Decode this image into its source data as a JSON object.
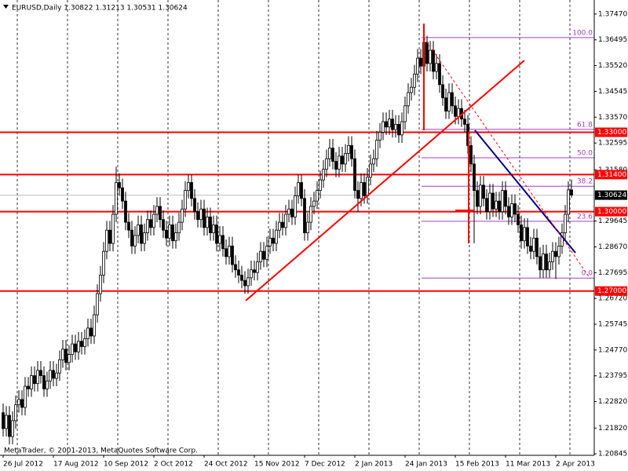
{
  "chart_data": {
    "type": "candlestick",
    "title": "EURUSD,Daily  1.30822 1.31213 1.30531 1.30624",
    "footer": "MetaTrader, © 2001-2013, MetaQuotes Software Corp.",
    "categories": [
      "26 Jul 2012",
      null,
      null,
      null,
      null,
      null,
      null,
      null,
      null,
      null,
      null,
      null,
      null,
      null,
      null,
      null,
      "17 Aug 2012",
      null,
      null,
      null,
      null,
      null,
      null,
      null,
      null,
      null,
      null,
      null,
      null,
      null,
      null,
      null,
      "10 Sep 2012",
      null,
      null,
      null,
      null,
      null,
      null,
      null,
      null,
      null,
      null,
      null,
      null,
      null,
      null,
      null,
      "2 Oct 2012",
      null,
      null,
      null,
      null,
      null,
      null,
      null,
      null,
      null,
      null,
      null,
      null,
      null,
      null,
      null,
      "24 Oct 2012",
      null,
      null,
      null,
      null,
      null,
      null,
      null,
      null,
      null,
      null,
      null,
      null,
      null,
      null,
      null,
      "15 Nov 2012",
      null,
      null,
      null,
      null,
      null,
      null,
      null,
      null,
      null,
      null,
      null,
      null,
      null,
      null,
      null,
      "7 Dec 2012",
      null,
      null,
      null,
      null,
      null,
      null,
      null,
      null,
      null,
      null,
      null,
      null,
      null,
      null,
      null,
      "2 Jan 2013",
      null,
      null,
      null,
      null,
      null,
      null,
      null,
      null,
      null,
      null,
      null,
      null,
      null,
      null,
      null,
      "24 Jan 2013",
      null,
      null,
      null,
      null,
      null,
      null,
      null,
      null,
      null,
      null,
      null,
      null,
      null,
      null,
      null,
      "15 Feb 2013",
      null,
      null,
      null,
      null,
      null,
      null,
      null,
      null,
      null,
      null,
      null,
      null,
      null,
      null,
      null,
      "11 Mar 2013",
      null,
      null,
      null,
      null,
      null,
      null,
      null,
      null,
      null,
      null,
      null,
      null,
      null,
      null,
      null,
      "2 Apr 2013",
      null,
      null,
      null,
      null,
      null
    ],
    "open": [
      1.224,
      1.218,
      1.223,
      1.215,
      1.221,
      1.227,
      1.229,
      1.226,
      1.234,
      1.233,
      1.238,
      1.235,
      1.24,
      1.238,
      1.233,
      1.236,
      1.24,
      1.237,
      1.239,
      1.244,
      1.248,
      1.243,
      1.246,
      1.25,
      1.247,
      1.251,
      1.249,
      1.252,
      1.256,
      1.253,
      1.261,
      1.269,
      1.276,
      1.285,
      1.293,
      1.288,
      1.299,
      1.311,
      1.309,
      1.304,
      1.296,
      1.293,
      1.287,
      1.291,
      1.295,
      1.288,
      1.292,
      1.297,
      1.294,
      1.299,
      1.302,
      1.297,
      1.293,
      1.29,
      1.295,
      1.289,
      1.292,
      1.296,
      1.301,
      1.308,
      1.311,
      1.305,
      1.3,
      1.297,
      1.301,
      1.294,
      1.298,
      1.292,
      1.295,
      1.288,
      1.291,
      1.286,
      1.283,
      1.287,
      1.28,
      1.278,
      1.276,
      1.274,
      1.272,
      1.275,
      1.278,
      1.277,
      1.281,
      1.285,
      1.282,
      1.287,
      1.29,
      1.288,
      1.293,
      1.296,
      1.294,
      1.299,
      1.301,
      1.298,
      1.306,
      1.311,
      1.305,
      1.292,
      1.296,
      1.302,
      1.304,
      1.308,
      1.312,
      1.316,
      1.32,
      1.324,
      1.319,
      1.316,
      1.321,
      1.318,
      1.322,
      1.325,
      1.32,
      1.308,
      1.305,
      1.311,
      1.306,
      1.313,
      1.318,
      1.32,
      1.327,
      1.33,
      1.334,
      1.332,
      1.335,
      1.331,
      1.333,
      1.329,
      1.334,
      1.34,
      1.345,
      1.347,
      1.352,
      1.358,
      1.355,
      1.364,
      1.356,
      1.361,
      1.353,
      1.356,
      1.348,
      1.343,
      1.338,
      1.345,
      1.34,
      1.336,
      1.339,
      1.335,
      1.333,
      1.325,
      1.318,
      1.308,
      1.302,
      1.31,
      1.305,
      1.3,
      1.307,
      1.301,
      1.304,
      1.3,
      1.308,
      1.302,
      1.298,
      1.303,
      1.299,
      1.295,
      1.289,
      1.294,
      1.287,
      1.285,
      1.29,
      1.283,
      1.278,
      1.284,
      1.278,
      1.281,
      1.285,
      1.283,
      1.287,
      1.292,
      1.299,
      1.30822
    ],
    "high": [
      1.2275,
      1.2265,
      1.2265,
      1.2245,
      1.2305,
      1.2325,
      1.2325,
      1.2375,
      1.2375,
      1.2415,
      1.2415,
      1.2435,
      1.2435,
      1.2415,
      1.2395,
      1.2435,
      1.2435,
      1.2425,
      1.2475,
      1.2515,
      1.2515,
      1.2495,
      1.2535,
      1.2535,
      1.2545,
      1.2545,
      1.2555,
      1.2595,
      1.2595,
      1.2645,
      1.2725,
      1.2795,
      1.2885,
      1.2965,
      1.2965,
      1.3025,
      1.317,
      1.3145,
      1.3125,
      1.3075,
      1.2995,
      1.2965,
      1.2945,
      1.2985,
      1.2985,
      1.2955,
      1.3005,
      1.3005,
      1.3025,
      1.3055,
      1.3055,
      1.3005,
      1.2965,
      1.2985,
      1.2985,
      1.2955,
      1.2995,
      1.3045,
      1.3115,
      1.314,
      1.314,
      1.3085,
      1.3035,
      1.3045,
      1.3045,
      1.3015,
      1.3015,
      1.2985,
      1.2985,
      1.2945,
      1.2945,
      1.2895,
      1.2905,
      1.2905,
      1.2835,
      1.2815,
      1.2795,
      1.2775,
      1.2785,
      1.2815,
      1.2815,
      1.2845,
      1.2885,
      1.2885,
      1.2905,
      1.2935,
      1.2935,
      1.2965,
      1.2995,
      1.2995,
      1.3025,
      1.3045,
      1.3045,
      1.3095,
      1.314,
      1.314,
      1.3085,
      1.2995,
      1.3055,
      1.3075,
      1.3115,
      1.3155,
      1.3195,
      1.3235,
      1.3275,
      1.3275,
      1.3225,
      1.3245,
      1.3245,
      1.3255,
      1.3285,
      1.3285,
      1.3235,
      1.3115,
      1.3145,
      1.3145,
      1.3165,
      1.3215,
      1.3235,
      1.3305,
      1.3335,
      1.3375,
      1.3375,
      1.3385,
      1.3385,
      1.3365,
      1.3365,
      1.3375,
      1.3435,
      1.3485,
      1.3505,
      1.3555,
      1.3615,
      1.3615,
      1.3665,
      1.3665,
      1.3645,
      1.3645,
      1.3595,
      1.3595,
      1.3515,
      1.3465,
      1.3485,
      1.3485,
      1.3435,
      1.3425,
      1.3425,
      1.3385,
      1.3365,
      1.3285,
      1.3215,
      1.3115,
      1.3135,
      1.3135,
      1.3085,
      1.3105,
      1.3105,
      1.3075,
      1.3075,
      1.3115,
      1.3115,
      1.3055,
      1.3065,
      1.3065,
      1.3025,
      1.2985,
      1.2975,
      1.2975,
      1.2905,
      1.2935,
      1.2935,
      1.2865,
      1.2875,
      1.2875,
      1.2845,
      1.2885,
      1.2885,
      1.2905,
      1.2955,
      1.3025,
      1.3115,
      1.31213
    ],
    "low": [
      1.215,
      1.215,
      1.212,
      1.212,
      1.218,
      1.224,
      1.223,
      1.223,
      1.23,
      1.23,
      1.232,
      1.232,
      1.235,
      1.23,
      1.23,
      1.233,
      1.234,
      1.234,
      1.236,
      1.241,
      1.24,
      1.24,
      1.243,
      1.244,
      1.244,
      1.246,
      1.246,
      1.249,
      1.25,
      1.25,
      1.258,
      1.266,
      1.273,
      1.282,
      1.285,
      1.285,
      1.296,
      1.306,
      1.301,
      1.293,
      1.29,
      1.284,
      1.284,
      1.288,
      1.285,
      1.285,
      1.289,
      1.291,
      1.291,
      1.296,
      1.294,
      1.29,
      1.287,
      1.287,
      1.286,
      1.286,
      1.289,
      1.293,
      1.298,
      1.305,
      1.302,
      1.297,
      1.294,
      1.294,
      1.291,
      1.291,
      1.289,
      1.289,
      1.285,
      1.285,
      1.283,
      1.28,
      1.28,
      1.277,
      1.275,
      1.273,
      1.271,
      1.269,
      1.269,
      1.272,
      1.274,
      1.274,
      1.278,
      1.279,
      1.279,
      1.284,
      1.285,
      1.285,
      1.29,
      1.291,
      1.291,
      1.296,
      1.295,
      1.295,
      1.303,
      1.302,
      1.289,
      1.289,
      1.293,
      1.299,
      1.301,
      1.305,
      1.309,
      1.313,
      1.317,
      1.316,
      1.313,
      1.313,
      1.315,
      1.315,
      1.319,
      1.317,
      1.305,
      1.3,
      1.302,
      1.303,
      1.303,
      1.31,
      1.315,
      1.317,
      1.324,
      1.327,
      1.329,
      1.329,
      1.328,
      1.328,
      1.326,
      1.326,
      1.331,
      1.337,
      1.342,
      1.344,
      1.349,
      1.352,
      1.352,
      1.353,
      1.353,
      1.35,
      1.35,
      1.345,
      1.34,
      1.335,
      1.335,
      1.337,
      1.333,
      1.333,
      1.332,
      1.33,
      1.322,
      1.315,
      1.288,
      1.299,
      1.299,
      1.302,
      1.297,
      1.297,
      1.298,
      1.298,
      1.297,
      1.297,
      1.299,
      1.295,
      1.295,
      1.296,
      1.292,
      1.286,
      1.286,
      1.284,
      1.282,
      1.282,
      1.28,
      1.275,
      1.275,
      1.275,
      1.275,
      1.278,
      1.2745,
      1.28,
      1.284,
      1.289,
      1.296,
      1.30531
    ],
    "close": [
      1.218,
      1.223,
      1.215,
      1.221,
      1.227,
      1.229,
      1.226,
      1.234,
      1.233,
      1.238,
      1.235,
      1.24,
      1.238,
      1.233,
      1.236,
      1.24,
      1.237,
      1.239,
      1.244,
      1.248,
      1.243,
      1.246,
      1.25,
      1.247,
      1.251,
      1.249,
      1.252,
      1.256,
      1.253,
      1.261,
      1.269,
      1.276,
      1.285,
      1.293,
      1.288,
      1.299,
      1.311,
      1.309,
      1.304,
      1.296,
      1.293,
      1.287,
      1.291,
      1.295,
      1.288,
      1.292,
      1.297,
      1.294,
      1.299,
      1.302,
      1.297,
      1.293,
      1.29,
      1.295,
      1.289,
      1.292,
      1.296,
      1.301,
      1.308,
      1.311,
      1.305,
      1.3,
      1.297,
      1.301,
      1.294,
      1.298,
      1.292,
      1.295,
      1.288,
      1.291,
      1.286,
      1.283,
      1.287,
      1.28,
      1.278,
      1.276,
      1.274,
      1.272,
      1.275,
      1.278,
      1.277,
      1.281,
      1.285,
      1.282,
      1.287,
      1.29,
      1.288,
      1.293,
      1.296,
      1.294,
      1.299,
      1.301,
      1.298,
      1.306,
      1.311,
      1.305,
      1.292,
      1.296,
      1.302,
      1.304,
      1.308,
      1.312,
      1.316,
      1.32,
      1.324,
      1.319,
      1.316,
      1.321,
      1.318,
      1.322,
      1.325,
      1.32,
      1.308,
      1.305,
      1.311,
      1.306,
      1.313,
      1.318,
      1.32,
      1.327,
      1.33,
      1.334,
      1.332,
      1.335,
      1.331,
      1.333,
      1.329,
      1.334,
      1.34,
      1.345,
      1.347,
      1.352,
      1.358,
      1.355,
      1.364,
      1.356,
      1.361,
      1.353,
      1.356,
      1.348,
      1.343,
      1.338,
      1.345,
      1.34,
      1.336,
      1.339,
      1.335,
      1.333,
      1.325,
      1.318,
      1.308,
      1.302,
      1.31,
      1.305,
      1.3,
      1.307,
      1.301,
      1.304,
      1.3,
      1.308,
      1.302,
      1.298,
      1.303,
      1.299,
      1.295,
      1.289,
      1.294,
      1.287,
      1.285,
      1.29,
      1.283,
      1.278,
      1.284,
      1.278,
      1.281,
      1.285,
      1.283,
      1.287,
      1.292,
      1.299,
      1.3082,
      1.30624
    ],
    "up_color": "#ffffff",
    "down_color": "#000000",
    "ylim": [
      1.2079,
      1.38
    ],
    "yticks": [
      {
        "value": 1.3747,
        "label": "1.37470"
      },
      {
        "value": 1.36495,
        "label": "1.36495"
      },
      {
        "value": 1.3552,
        "label": "1.35520"
      },
      {
        "value": 1.34545,
        "label": "1.34545"
      },
      {
        "value": 1.3357,
        "label": "1.33570"
      },
      {
        "value": 1.32595,
        "label": "1.32595"
      },
      {
        "value": 1.3158,
        "label": "1.31580"
      },
      {
        "value": 1.29645,
        "label": "1.29645"
      },
      {
        "value": 1.2867,
        "label": "1.28670"
      },
      {
        "value": 1.27695,
        "label": "1.27695"
      },
      {
        "value": 1.2672,
        "label": "1.26720"
      },
      {
        "value": 1.25745,
        "label": "1.25745"
      },
      {
        "value": 1.2477,
        "label": "1.24770"
      },
      {
        "value": 1.23795,
        "label": "1.23795"
      },
      {
        "value": 1.2282,
        "label": "1.22820"
      },
      {
        "value": 1.2182,
        "label": "1.21820"
      },
      {
        "value": 1.20845,
        "label": "1.20845"
      }
    ],
    "grid": true,
    "price_levels": [
      {
        "value": 1.33,
        "label": "1.33000"
      },
      {
        "value": 1.314,
        "label": "1.31400"
      },
      {
        "value": 1.3,
        "label": "1.30000"
      },
      {
        "value": 1.27,
        "label": "1.27000"
      }
    ],
    "level_color": "#ff0000",
    "current_price": {
      "value": 1.30624,
      "label": "1.30624"
    },
    "fibonacci": [
      {
        "value": 1.3658,
        "label": "100.0"
      },
      {
        "value": 1.3311,
        "label": "61.8"
      },
      {
        "value": 1.32035,
        "label": "50.0"
      },
      {
        "value": 1.30962,
        "label": "38.2"
      },
      {
        "value": 1.29635,
        "label": "23.6"
      },
      {
        "value": 1.2749,
        "label": "0.0"
      }
    ],
    "fib_color": "#a040c0"
  }
}
